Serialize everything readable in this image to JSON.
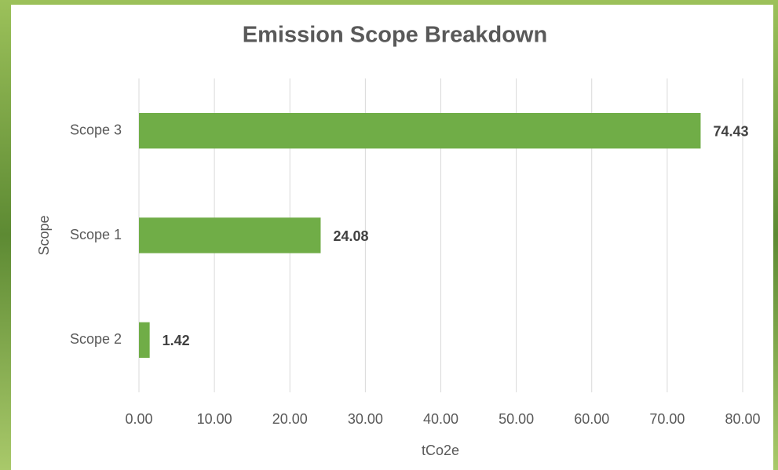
{
  "chart_data": {
    "type": "bar",
    "orientation": "horizontal",
    "title": "Emission Scope Breakdown",
    "x_label": "tCo2e",
    "y_label": "Scope",
    "categories": [
      "Scope 3",
      "Scope 1",
      "Scope 2"
    ],
    "values": [
      74.43,
      24.08,
      1.42
    ],
    "color": "#70ad47",
    "xlim": [
      0,
      80
    ],
    "xticks": [
      {
        "value": 0,
        "label": "0.00"
      },
      {
        "value": 10,
        "label": "10.00"
      },
      {
        "value": 20,
        "label": "20.00"
      },
      {
        "value": 30,
        "label": "30.00"
      },
      {
        "value": 40,
        "label": "40.00"
      },
      {
        "value": 50,
        "label": "50.00"
      },
      {
        "value": 60,
        "label": "60.00"
      },
      {
        "value": 70,
        "label": "70.00"
      },
      {
        "value": 80,
        "label": "80.00"
      }
    ],
    "grid": true
  }
}
